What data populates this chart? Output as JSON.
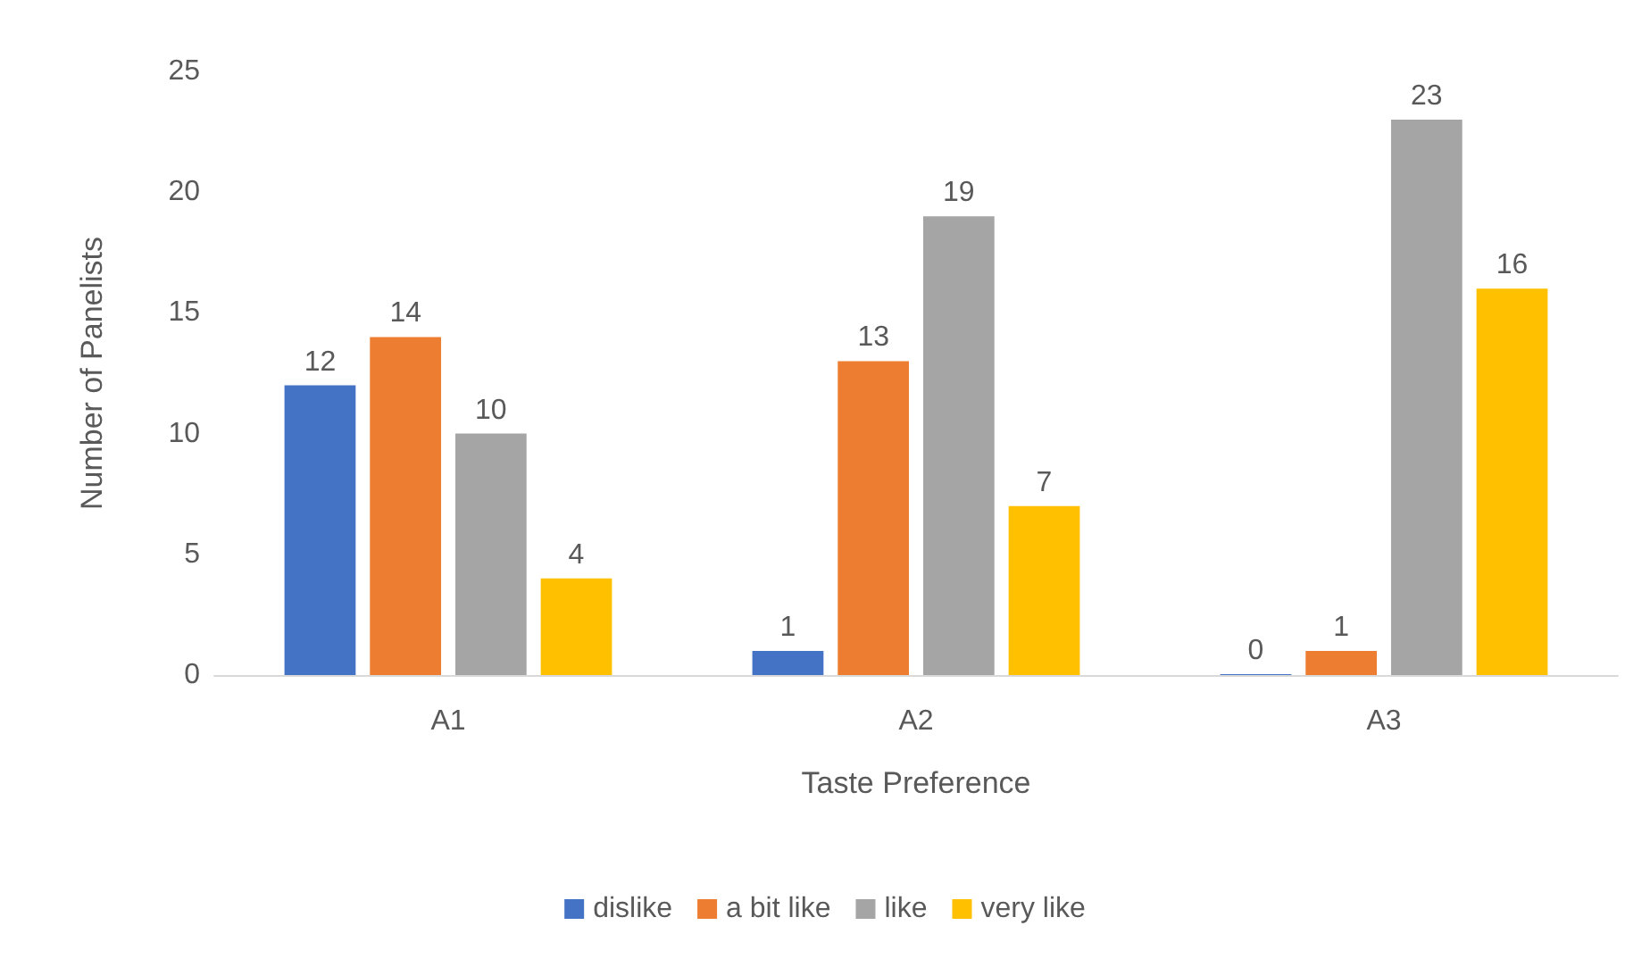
{
  "chart_data": {
    "type": "bar",
    "xlabel": "Taste Preference",
    "ylabel": "Number of Panelists",
    "categories": [
      "A1",
      "A2",
      "A3"
    ],
    "series": [
      {
        "name": "dislike",
        "color": "#4472c4",
        "values": [
          12,
          1,
          0
        ]
      },
      {
        "name": "a bit like",
        "color": "#ed7d31",
        "values": [
          14,
          13,
          1
        ]
      },
      {
        "name": "like",
        "color": "#a5a5a5",
        "values": [
          10,
          19,
          23
        ]
      },
      {
        "name": "very like",
        "color": "#ffc000",
        "values": [
          4,
          7,
          16
        ]
      }
    ],
    "ylim": [
      0,
      25
    ],
    "yticks": [
      0,
      5,
      10,
      15,
      20,
      25
    ],
    "grid": false,
    "legend": "bottom",
    "data_labels": true
  }
}
